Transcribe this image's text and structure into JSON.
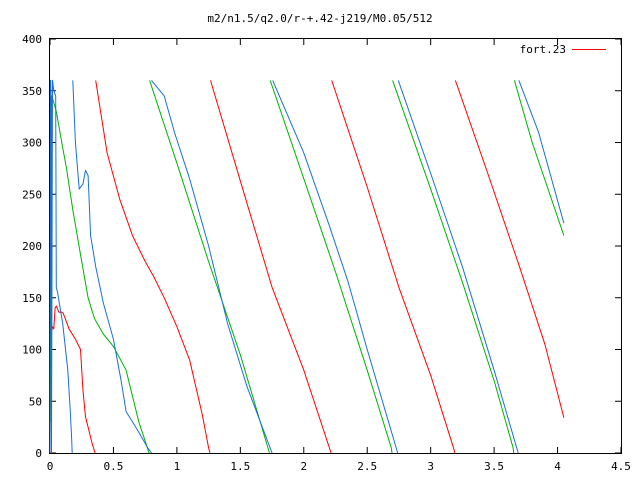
{
  "chart_data": {
    "type": "line",
    "title": "m2/n1.5/q2.0/r-+.42-j219/M0.05/512",
    "xlabel": "",
    "ylabel": "",
    "xlim": [
      0,
      4.5
    ],
    "ylim": [
      0,
      400
    ],
    "x_ticks": [
      "0",
      "0.5",
      "1",
      "1.5",
      "2",
      "2.5",
      "3",
      "3.5",
      "4",
      "4.5"
    ],
    "y_ticks": [
      "0",
      "50",
      "100",
      "150",
      "200",
      "250",
      "300",
      "350",
      "400"
    ],
    "grid": false,
    "legend_position": "top-right",
    "legend_label": "fort.23",
    "series": [
      {
        "name": "fort.23",
        "color": "#ff0000",
        "points": [
          [
            0.0,
            0
          ],
          [
            0.005,
            125
          ],
          [
            0.01,
            130
          ],
          [
            0.015,
            118
          ],
          [
            0.02,
            122
          ],
          [
            0.03,
            120
          ],
          [
            0.04,
            140
          ],
          [
            0.05,
            142
          ],
          [
            0.07,
            136
          ],
          [
            0.1,
            136
          ],
          [
            0.12,
            130
          ],
          [
            0.15,
            120
          ],
          [
            0.2,
            110
          ],
          [
            0.24,
            100
          ],
          [
            0.26,
            60
          ],
          [
            0.28,
            35
          ],
          [
            0.3,
            25
          ],
          [
            0.33,
            10
          ],
          [
            0.35,
            2
          ],
          [
            0.355,
            0
          ],
          [
            0.36,
            null
          ],
          [
            0.36,
            360
          ],
          [
            0.45,
            290
          ],
          [
            0.55,
            245
          ],
          [
            0.65,
            210
          ],
          [
            0.75,
            185
          ],
          [
            0.82,
            170
          ],
          [
            0.9,
            150
          ],
          [
            1.0,
            122
          ],
          [
            1.1,
            90
          ],
          [
            1.2,
            37
          ],
          [
            1.25,
            5
          ],
          [
            1.26,
            0
          ],
          [
            1.265,
            null
          ],
          [
            1.265,
            360
          ],
          [
            1.5,
            263
          ],
          [
            1.75,
            160
          ],
          [
            2.0,
            80
          ],
          [
            2.215,
            0
          ],
          [
            2.22,
            null
          ],
          [
            2.22,
            360
          ],
          [
            2.5,
            257
          ],
          [
            2.75,
            160
          ],
          [
            3.0,
            75
          ],
          [
            3.18,
            5
          ],
          [
            3.19,
            0
          ],
          [
            3.195,
            null
          ],
          [
            3.195,
            360
          ],
          [
            3.45,
            270
          ],
          [
            3.7,
            180
          ],
          [
            3.9,
            105
          ],
          [
            4.05,
            34
          ]
        ]
      },
      {
        "name": "",
        "color": "#00b000",
        "points": [
          [
            0.0,
            0
          ],
          [
            0.004,
            200
          ],
          [
            0.006,
            360
          ],
          [
            0.01,
            30
          ],
          [
            0.015,
            345
          ],
          [
            0.05,
            330
          ],
          [
            0.1,
            295
          ],
          [
            0.13,
            275
          ],
          [
            0.18,
            235
          ],
          [
            0.25,
            185
          ],
          [
            0.3,
            150
          ],
          [
            0.35,
            130
          ],
          [
            0.42,
            115
          ],
          [
            0.5,
            103
          ],
          [
            0.6,
            80
          ],
          [
            0.7,
            30
          ],
          [
            0.76,
            8
          ],
          [
            0.78,
            0
          ],
          [
            0.785,
            null
          ],
          [
            0.785,
            360
          ],
          [
            1.0,
            280
          ],
          [
            1.25,
            185
          ],
          [
            1.5,
            95
          ],
          [
            1.73,
            0
          ],
          [
            1.735,
            null
          ],
          [
            1.735,
            360
          ],
          [
            2.0,
            265
          ],
          [
            2.25,
            175
          ],
          [
            2.5,
            80
          ],
          [
            2.69,
            5
          ],
          [
            2.695,
            0
          ],
          [
            2.7,
            null
          ],
          [
            2.7,
            360
          ],
          [
            3.0,
            255
          ],
          [
            3.25,
            165
          ],
          [
            3.5,
            70
          ],
          [
            3.65,
            5
          ],
          [
            3.655,
            0
          ],
          [
            3.66,
            null
          ],
          [
            3.66,
            360
          ],
          [
            3.8,
            300
          ],
          [
            4.05,
            210
          ]
        ]
      },
      {
        "name": "",
        "color": "#1a6fd9",
        "points": [
          [
            0.0,
            0
          ],
          [
            0.003,
            360
          ],
          [
            0.008,
            340
          ],
          [
            0.012,
            0
          ],
          [
            0.02,
            360
          ],
          [
            0.03,
            350
          ],
          [
            0.045,
            345
          ],
          [
            0.05,
            160
          ],
          [
            0.06,
            155
          ],
          [
            0.1,
            125
          ],
          [
            0.14,
            80
          ],
          [
            0.16,
            40
          ],
          [
            0.17,
            15
          ],
          [
            0.175,
            0
          ],
          [
            0.18,
            null
          ],
          [
            0.18,
            360
          ],
          [
            0.2,
            300
          ],
          [
            0.23,
            255
          ],
          [
            0.26,
            260
          ],
          [
            0.28,
            273
          ],
          [
            0.3,
            268
          ],
          [
            0.32,
            210
          ],
          [
            0.36,
            180
          ],
          [
            0.42,
            145
          ],
          [
            0.5,
            110
          ],
          [
            0.56,
            70
          ],
          [
            0.6,
            40
          ],
          [
            0.65,
            30
          ],
          [
            0.7,
            20
          ],
          [
            0.77,
            5
          ],
          [
            0.8,
            0
          ],
          [
            0.8,
            null
          ],
          [
            0.8,
            360
          ],
          [
            0.9,
            345
          ],
          [
            0.98,
            310
          ],
          [
            1.1,
            265
          ],
          [
            1.25,
            200
          ],
          [
            1.4,
            125
          ],
          [
            1.55,
            65
          ],
          [
            1.75,
            0
          ],
          [
            1.755,
            null
          ],
          [
            1.755,
            360
          ],
          [
            2.0,
            290
          ],
          [
            2.2,
            220
          ],
          [
            2.35,
            165
          ],
          [
            2.5,
            100
          ],
          [
            2.74,
            0
          ],
          [
            2.745,
            null
          ],
          [
            2.745,
            360
          ],
          [
            3.0,
            270
          ],
          [
            3.25,
            180
          ],
          [
            3.5,
            80
          ],
          [
            3.69,
            0
          ],
          [
            3.695,
            null
          ],
          [
            3.695,
            360
          ],
          [
            3.85,
            310
          ],
          [
            4.05,
            222
          ]
        ]
      }
    ]
  }
}
